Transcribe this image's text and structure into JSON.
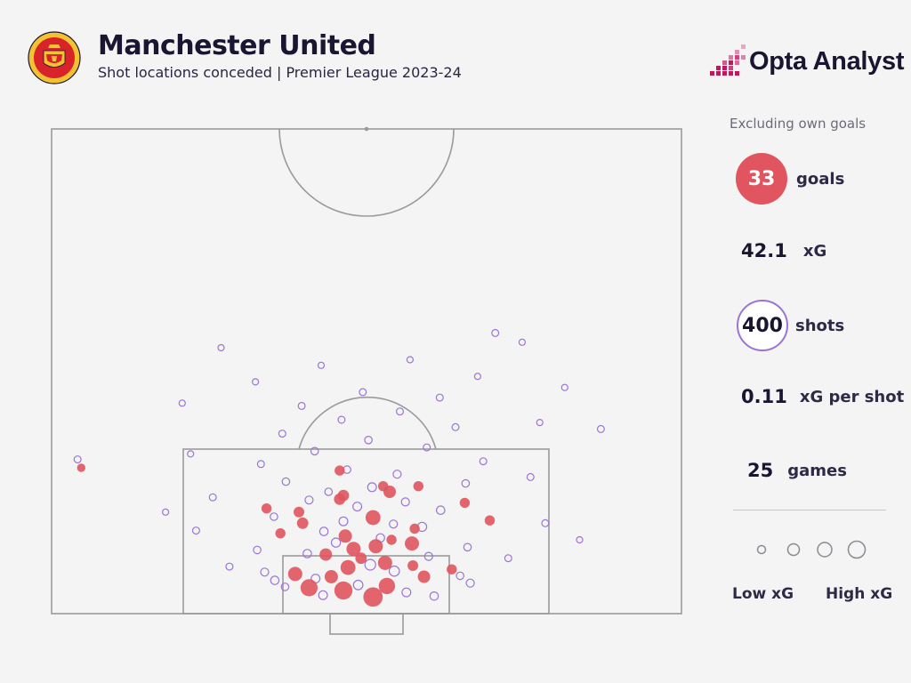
{
  "header": {
    "title": "Manchester United",
    "subtitle": "Shot locations conceded | Premier League 2023-24",
    "crest_text_top": "MANCHESTER",
    "crest_text_bottom": "UNITED",
    "brand": "Opta Analyst"
  },
  "sidebar": {
    "note": "Excluding own goals",
    "goals_value": "33",
    "goals_label": "goals",
    "xg_value": "42.1",
    "xg_label": "xG",
    "shots_value": "400",
    "shots_label": "shots",
    "xg_per_shot_value": "0.11",
    "xg_per_shot_label": "xG per shot",
    "games_value": "25",
    "games_label": "games",
    "legend_low": "Low xG",
    "legend_high": "High xG"
  },
  "colors": {
    "goal": "#e0555f",
    "shot": "#9a74d6",
    "pitch_line": "#9a9a9a",
    "brand_pink": "#c2185b"
  },
  "chart_data": {
    "type": "scatter",
    "title": "Manchester United",
    "subtitle": "Shot locations conceded | Premier League 2023-24",
    "xlabel": "",
    "ylabel": "",
    "note": "Shot locations on half pitch; x = pitch length from goal line, y = pitch width (metres)",
    "xlim": [
      0,
      52.5
    ],
    "ylim": [
      0,
      68
    ],
    "summary": {
      "goals": 33,
      "xG": 42.1,
      "shots": 400,
      "xG_per_shot": 0.11,
      "games": 25
    },
    "legend": [
      "Low xG",
      "High xG"
    ],
    "series": [
      {
        "name": "goals",
        "points": [
          {
            "x": 2.5,
            "y": 31.5,
            "xg": 0.6
          },
          {
            "x": 1.8,
            "y": 34.7,
            "xg": 0.7
          },
          {
            "x": 3.0,
            "y": 36.2,
            "xg": 0.45
          },
          {
            "x": 2.8,
            "y": 27.8,
            "xg": 0.5
          },
          {
            "x": 4.3,
            "y": 26.3,
            "xg": 0.3
          },
          {
            "x": 4.0,
            "y": 30.2,
            "xg": 0.25
          },
          {
            "x": 4.0,
            "y": 40.2,
            "xg": 0.2
          },
          {
            "x": 5.5,
            "y": 36.0,
            "xg": 0.3
          },
          {
            "x": 5.0,
            "y": 32.0,
            "xg": 0.35
          },
          {
            "x": 6.0,
            "y": 33.4,
            "xg": 0.15
          },
          {
            "x": 4.8,
            "y": 43.2,
            "xg": 0.1
          },
          {
            "x": 8.4,
            "y": 31.7,
            "xg": 0.25
          },
          {
            "x": 7.0,
            "y": 32.6,
            "xg": 0.3
          },
          {
            "x": 7.3,
            "y": 35.0,
            "xg": 0.3
          },
          {
            "x": 7.6,
            "y": 38.9,
            "xg": 0.3
          },
          {
            "x": 8.0,
            "y": 36.7,
            "xg": 0.1
          },
          {
            "x": 10.4,
            "y": 34.7,
            "xg": 0.35
          },
          {
            "x": 8.7,
            "y": 24.7,
            "xg": 0.1
          },
          {
            "x": 9.8,
            "y": 27.1,
            "xg": 0.15
          },
          {
            "x": 11.0,
            "y": 26.7,
            "xg": 0.12
          },
          {
            "x": 10.1,
            "y": 47.3,
            "xg": 0.1
          },
          {
            "x": 12.0,
            "y": 44.6,
            "xg": 0.1
          },
          {
            "x": 12.4,
            "y": 31.1,
            "xg": 0.15
          },
          {
            "x": 12.8,
            "y": 31.5,
            "xg": 0.15
          },
          {
            "x": 13.2,
            "y": 36.5,
            "xg": 0.2
          },
          {
            "x": 13.8,
            "y": 35.8,
            "xg": 0.1
          },
          {
            "x": 13.8,
            "y": 39.6,
            "xg": 0.1
          },
          {
            "x": 11.4,
            "y": 23.2,
            "xg": 0.1
          },
          {
            "x": 15.5,
            "y": 31.1,
            "xg": 0.1
          },
          {
            "x": 15.8,
            "y": 3.2,
            "xg": 0.05
          },
          {
            "x": 9.2,
            "y": 39.2,
            "xg": 0.1
          },
          {
            "x": 6.4,
            "y": 29.6,
            "xg": 0.2
          },
          {
            "x": 5.2,
            "y": 39.0,
            "xg": 0.12
          }
        ]
      },
      {
        "name": "shots",
        "points": [
          {
            "x": 30.4,
            "y": 47.9,
            "xg": 0.02
          },
          {
            "x": 16.7,
            "y": 2.8,
            "xg": 0.02
          },
          {
            "x": 20.0,
            "y": 59.3,
            "xg": 0.02
          },
          {
            "x": 3.6,
            "y": 24.1,
            "xg": 0.05
          },
          {
            "x": 4.5,
            "y": 23.0,
            "xg": 0.04
          },
          {
            "x": 2.9,
            "y": 25.2,
            "xg": 0.03
          },
          {
            "x": 3.3,
            "y": 45.2,
            "xg": 0.04
          },
          {
            "x": 4.1,
            "y": 44.1,
            "xg": 0.03
          },
          {
            "x": 2.0,
            "y": 29.3,
            "xg": 0.06
          },
          {
            "x": 3.1,
            "y": 33.1,
            "xg": 0.08
          },
          {
            "x": 2.3,
            "y": 38.3,
            "xg": 0.06
          },
          {
            "x": 1.9,
            "y": 41.3,
            "xg": 0.05
          },
          {
            "x": 4.6,
            "y": 37.0,
            "xg": 0.1
          },
          {
            "x": 3.8,
            "y": 28.5,
            "xg": 0.06
          },
          {
            "x": 5.3,
            "y": 34.4,
            "xg": 0.12
          },
          {
            "x": 6.5,
            "y": 27.6,
            "xg": 0.05
          },
          {
            "x": 6.2,
            "y": 40.7,
            "xg": 0.04
          },
          {
            "x": 6.9,
            "y": 22.2,
            "xg": 0.03
          },
          {
            "x": 7.2,
            "y": 44.9,
            "xg": 0.03
          },
          {
            "x": 7.7,
            "y": 30.7,
            "xg": 0.07
          },
          {
            "x": 8.2,
            "y": 35.5,
            "xg": 0.05
          },
          {
            "x": 8.9,
            "y": 29.4,
            "xg": 0.05
          },
          {
            "x": 9.4,
            "y": 40.0,
            "xg": 0.07
          },
          {
            "x": 10.0,
            "y": 31.5,
            "xg": 0.06
          },
          {
            "x": 9.7,
            "y": 36.9,
            "xg": 0.04
          },
          {
            "x": 10.5,
            "y": 24.0,
            "xg": 0.03
          },
          {
            "x": 11.2,
            "y": 42.0,
            "xg": 0.05
          },
          {
            "x": 11.6,
            "y": 33.0,
            "xg": 0.06
          },
          {
            "x": 12.3,
            "y": 27.8,
            "xg": 0.04
          },
          {
            "x": 12.1,
            "y": 38.2,
            "xg": 0.04
          },
          {
            "x": 13.2,
            "y": 29.9,
            "xg": 0.03
          },
          {
            "x": 13.7,
            "y": 34.6,
            "xg": 0.06
          },
          {
            "x": 14.3,
            "y": 25.3,
            "xg": 0.03
          },
          {
            "x": 14.1,
            "y": 44.7,
            "xg": 0.03
          },
          {
            "x": 15.1,
            "y": 37.3,
            "xg": 0.04
          },
          {
            "x": 15.6,
            "y": 31.9,
            "xg": 0.03
          },
          {
            "x": 16.2,
            "y": 22.6,
            "xg": 0.02
          },
          {
            "x": 16.5,
            "y": 46.6,
            "xg": 0.02
          },
          {
            "x": 17.6,
            "y": 28.4,
            "xg": 0.03
          },
          {
            "x": 18.0,
            "y": 40.5,
            "xg": 0.02
          },
          {
            "x": 18.8,
            "y": 34.2,
            "xg": 0.03
          },
          {
            "x": 19.5,
            "y": 24.9,
            "xg": 0.02
          },
          {
            "x": 20.2,
            "y": 43.6,
            "xg": 0.02
          },
          {
            "x": 21.0,
            "y": 31.3,
            "xg": 0.02
          },
          {
            "x": 21.9,
            "y": 37.6,
            "xg": 0.02
          },
          {
            "x": 22.5,
            "y": 27.0,
            "xg": 0.02
          },
          {
            "x": 23.4,
            "y": 41.9,
            "xg": 0.02
          },
          {
            "x": 24.0,
            "y": 33.6,
            "xg": 0.02
          },
          {
            "x": 25.1,
            "y": 22.0,
            "xg": 0.01
          },
          {
            "x": 25.7,
            "y": 46.0,
            "xg": 0.01
          },
          {
            "x": 26.9,
            "y": 29.1,
            "xg": 0.01
          },
          {
            "x": 27.5,
            "y": 38.7,
            "xg": 0.01
          },
          {
            "x": 28.8,
            "y": 18.3,
            "xg": 0.01
          },
          {
            "x": 29.4,
            "y": 50.8,
            "xg": 0.01
          },
          {
            "x": 9.0,
            "y": 15.6,
            "xg": 0.02
          },
          {
            "x": 12.6,
            "y": 17.4,
            "xg": 0.02
          },
          {
            "x": 17.3,
            "y": 15.0,
            "xg": 0.01
          },
          {
            "x": 9.8,
            "y": 53.3,
            "xg": 0.02
          },
          {
            "x": 14.8,
            "y": 51.7,
            "xg": 0.02
          },
          {
            "x": 20.7,
            "y": 52.7,
            "xg": 0.01
          },
          {
            "x": 5.1,
            "y": 19.2,
            "xg": 0.02
          },
          {
            "x": 6.0,
            "y": 49.3,
            "xg": 0.02
          },
          {
            "x": 11.0,
            "y": 12.3,
            "xg": 0.01
          },
          {
            "x": 8.0,
            "y": 57.0,
            "xg": 0.01
          },
          {
            "x": 22.8,
            "y": 14.1,
            "xg": 0.01
          },
          {
            "x": 24.5,
            "y": 55.4,
            "xg": 0.01
          }
        ]
      }
    ]
  }
}
